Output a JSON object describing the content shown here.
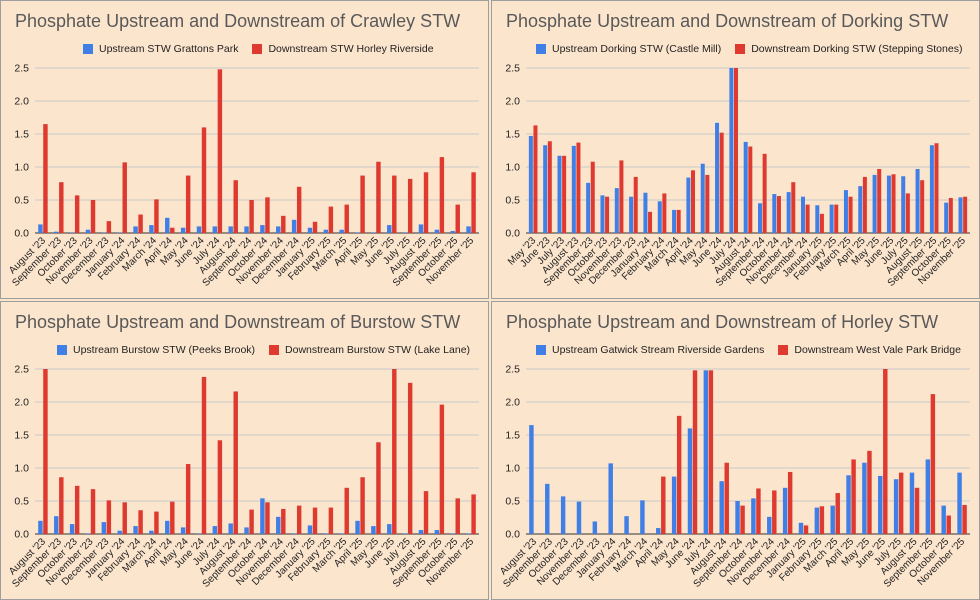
{
  "colors": {
    "upstream": "#3f7fe6",
    "downstream": "#de3a30",
    "background": "#fce5cd",
    "grid": "#c9c9c9"
  },
  "chart_data": [
    {
      "type": "bar",
      "title": "Phosphate Upstream and Downstream of Crawley STW",
      "ylim": [
        0,
        2.5
      ],
      "yticks": [
        "0.0",
        "0.5",
        "1.0",
        "1.5",
        "2.0",
        "2.5"
      ],
      "categories": [
        "August '23",
        "September '23",
        "October '23",
        "November '23",
        "December '23",
        "January '24",
        "February '24",
        "March '24",
        "April '24",
        "May '24",
        "June '24",
        "July '24",
        "August '24",
        "September '24",
        "October '24",
        "November '24",
        "December '24",
        "January '25",
        "February '25",
        "March '25",
        "April '25",
        "May '25",
        "June '25",
        "July '25",
        "August '25",
        "September '25",
        "October '25",
        "November '25"
      ],
      "xlabels": [
        "August '23",
        "September '23",
        "October '23",
        "November '23",
        "December '23",
        "January '24",
        "February '24",
        "March '24",
        "April '24",
        "May '24",
        "June '24",
        "July '24",
        "August '24",
        "September '24",
        "October '24",
        "November '24",
        "December '24",
        "January '25",
        "February '25",
        "March '25",
        "April '25",
        "May '25",
        "June '25",
        "July '25",
        "August '25",
        "September '25",
        "October '25",
        "November '25"
      ],
      "series": [
        {
          "name": "Upstream STW Grattons Park",
          "values": [
            0.13,
            0.02,
            0.01,
            0.05,
            0.01,
            0.01,
            0.1,
            0.12,
            0.23,
            0.08,
            0.1,
            0.1,
            0.1,
            0.1,
            0.12,
            0.1,
            0.2,
            0.08,
            0.05,
            0.05,
            0.01,
            0.01,
            0.12,
            0.01,
            0.13,
            0.05,
            0.03,
            0.1
          ]
        },
        {
          "name": "Downstream STW Horley Riverside",
          "values": [
            1.65,
            0.77,
            0.57,
            0.5,
            0.18,
            1.07,
            0.28,
            0.51,
            0.08,
            0.87,
            1.6,
            2.48,
            0.8,
            0.5,
            0.54,
            0.26,
            0.7,
            0.17,
            0.4,
            0.43,
            0.87,
            1.08,
            0.87,
            0.82,
            0.92,
            1.15,
            0.43,
            0.92
          ]
        }
      ]
    },
    {
      "type": "bar",
      "title": "Phosphate Upstream and Downstream of Dorking STW",
      "ylim": [
        0,
        2.5
      ],
      "yticks": [
        "0.0",
        "0.5",
        "1.0",
        "1.5",
        "2.0",
        "2.5"
      ],
      "categories": [
        "May '23",
        "June '23",
        "July '23",
        "August '23",
        "September '23",
        "October '23",
        "November '23",
        "December '23",
        "January '24",
        "February '24",
        "March '24",
        "April '24",
        "May '24",
        "June '24",
        "July '24",
        "August '24",
        "September '24",
        "October '24",
        "November '24",
        "December '24",
        "January '25",
        "February '25",
        "March '25",
        "April '25",
        "May '25",
        "June '25",
        "July '25",
        "August '25",
        "September '25",
        "October '25",
        "November '25"
      ],
      "xlabels": [
        "May '23",
        "June '23",
        "July '23",
        "August '23",
        "September '23",
        "October '23",
        "November '23",
        "December '23",
        "January '24",
        "February '24",
        "March '24",
        "April '24",
        "May '24",
        "June '24",
        "July '24",
        "August '24",
        "September '24",
        "October '24",
        "November '24",
        "December '24",
        "January '25",
        "February '25",
        "March '25",
        "April '25",
        "May '25",
        "June '25",
        "July '25",
        "August '25",
        "September '25",
        "October '25",
        "November '25"
      ],
      "series": [
        {
          "name": "Upstream Dorking STW (Castle Mill)",
          "values": [
            1.47,
            1.33,
            1.17,
            1.32,
            0.76,
            0.57,
            0.68,
            0.55,
            0.61,
            0.48,
            0.35,
            0.84,
            1.05,
            1.67,
            2.5,
            1.38,
            0.45,
            0.59,
            0.62,
            0.55,
            0.42,
            0.43,
            0.65,
            0.71,
            0.88,
            0.87,
            0.86,
            0.97,
            1.33,
            0.46,
            0.54
          ]
        },
        {
          "name": "Downstream Dorking STW (Stepping Stones)",
          "values": [
            1.63,
            1.39,
            1.17,
            1.37,
            1.08,
            0.55,
            1.1,
            0.85,
            0.32,
            0.6,
            0.35,
            0.95,
            0.88,
            1.52,
            2.5,
            1.31,
            1.2,
            0.56,
            0.77,
            0.43,
            0.29,
            0.43,
            0.55,
            0.85,
            0.97,
            0.89,
            0.6,
            0.8,
            1.36,
            0.53,
            0.55
          ]
        }
      ]
    },
    {
      "type": "bar",
      "title": "Phosphate Upstream and Downstream of Burstow STW",
      "ylim": [
        0,
        2.5
      ],
      "yticks": [
        "0.0",
        "0.5",
        "1.0",
        "1.5",
        "2.0",
        "2.5"
      ],
      "categories": [
        "August '23",
        "September '23",
        "October '23",
        "November '23",
        "December '23",
        "January '24",
        "February '24",
        "March '24",
        "April '24",
        "May '24",
        "June '24",
        "July '24",
        "August '24",
        "September '24",
        "October '24",
        "November '24",
        "December '24",
        "January '25",
        "February '25",
        "March '25",
        "April '25",
        "May '25",
        "June '25",
        "July '25",
        "August '25",
        "September '25",
        "October '25",
        "November '25"
      ],
      "xlabels": [
        "August '23",
        "September '23",
        "October '23",
        "November '23",
        "December '23",
        "January '24",
        "February '24",
        "March '24",
        "April '24",
        "May '24",
        "June '24",
        "July '24",
        "August '24",
        "September '24",
        "October '24",
        "November '24",
        "December '24",
        "January '25",
        "February '25",
        "March '25",
        "April '25",
        "May '25",
        "June '25",
        "July '25",
        "August '25",
        "September '25",
        "October '25",
        "November '25"
      ],
      "series": [
        {
          "name": "Upstream Burstow STW (Peeks Brook)",
          "values": [
            0.2,
            0.27,
            0.15,
            0.01,
            0.18,
            0.05,
            0.12,
            0.05,
            0.2,
            0.1,
            0.01,
            0.12,
            0.16,
            0.1,
            0.54,
            0.26,
            0.01,
            0.13,
            0.01,
            0.01,
            0.2,
            0.12,
            0.15,
            0.01,
            0.06,
            0.06,
            0.01,
            0.01
          ]
        },
        {
          "name": "Downstream Burstow STW (Lake Lane)",
          "values": [
            2.5,
            0.86,
            0.73,
            0.68,
            0.51,
            0.48,
            0.36,
            0.34,
            0.49,
            1.06,
            2.38,
            1.42,
            2.16,
            0.37,
            0.48,
            0.38,
            0.43,
            0.4,
            0.4,
            0.7,
            0.86,
            1.39,
            2.5,
            2.29,
            0.65,
            1.96,
            0.54,
            0.6
          ]
        }
      ]
    },
    {
      "type": "bar",
      "title": "Phosphate Upstream and Downstream of Horley STW",
      "ylim": [
        0,
        2.5
      ],
      "yticks": [
        "0.0",
        "0.5",
        "1.0",
        "1.5",
        "2.0",
        "2.5"
      ],
      "categories": [
        "August '23",
        "September '23",
        "October '23",
        "November '23",
        "December '23",
        "January '24",
        "February '24",
        "March '24",
        "April '24",
        "May '24",
        "June '24",
        "July '24",
        "August '24",
        "September '24",
        "October '24",
        "November '24",
        "December '24",
        "January '25",
        "February '25",
        "March '25",
        "April '25",
        "May '25",
        "June '25",
        "July '25",
        "August '25",
        "September '25",
        "October '25",
        "November '25"
      ],
      "xlabels": [
        "August '23",
        "September '23",
        "October '23",
        "November '23",
        "December '23",
        "January '24",
        "February '24",
        "March '24",
        "April '24",
        "May '24",
        "June '24",
        "July '24",
        "August '24",
        "September '24",
        "October '24",
        "November '24",
        "December '24",
        "January '25",
        "February '25",
        "March '25",
        "April '25",
        "May '25",
        "June '25",
        "July '25",
        "August '25",
        "September '25",
        "October '25",
        "November '25"
      ],
      "series": [
        {
          "name": "Upstream Gatwick Stream Riverside Gardens",
          "values": [
            1.65,
            0.76,
            0.57,
            0.49,
            0.19,
            1.07,
            0.27,
            0.51,
            0.09,
            0.87,
            1.6,
            2.48,
            0.8,
            0.5,
            0.54,
            0.26,
            0.7,
            0.17,
            0.4,
            0.43,
            0.89,
            1.08,
            0.88,
            0.83,
            0.93,
            1.13,
            0.43,
            0.93
          ]
        },
        {
          "name": "Downstream West Vale Park Bridge",
          "values": [
            0,
            0,
            0,
            0,
            0,
            0,
            0,
            0,
            0.87,
            1.79,
            2.48,
            2.48,
            1.08,
            0.43,
            0.69,
            0.66,
            0.94,
            0.13,
            0.42,
            0.62,
            1.13,
            1.26,
            2.5,
            0.93,
            0.7,
            2.12,
            0.28,
            0.44
          ]
        }
      ]
    }
  ]
}
